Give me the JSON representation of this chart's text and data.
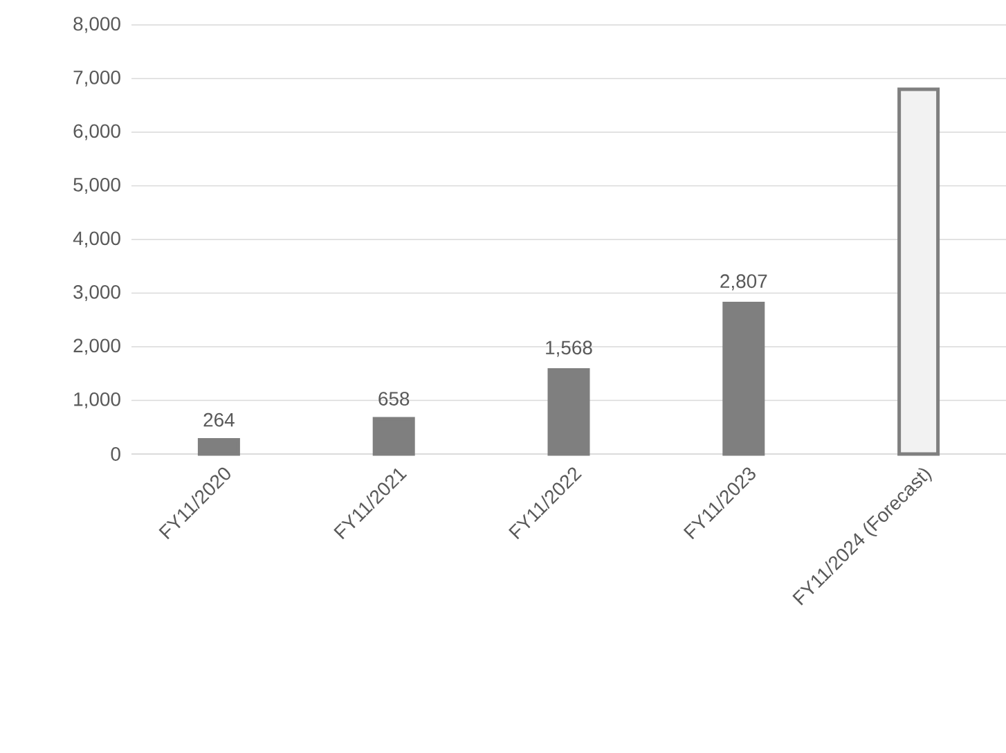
{
  "chart_data": {
    "type": "bar",
    "categories": [
      "FY11/2020",
      "FY11/2021",
      "FY11/2022",
      "FY11/2023",
      "FY11/2024 (Forecast)"
    ],
    "values": [
      264,
      658,
      1568,
      2807,
      6800
    ],
    "colors": [
      "#7f7f7f",
      "#7f7f7f",
      "#7f7f7f",
      "#7f7f7f",
      "#f2f2f2"
    ],
    "value_labels": [
      "264",
      "658",
      "1,568",
      "2,807",
      null
    ],
    "ylim": [
      0,
      8000
    ],
    "yticks": [
      {
        "value": 0,
        "label": "0"
      },
      {
        "value": 1000,
        "label": "1,000"
      },
      {
        "value": 2000,
        "label": "2,000"
      },
      {
        "value": 3000,
        "label": "3,000"
      },
      {
        "value": 4000,
        "label": "4,000"
      },
      {
        "value": 5000,
        "label": "5,000"
      },
      {
        "value": 6000,
        "label": "6,000"
      },
      {
        "value": 7000,
        "label": "7,000"
      },
      {
        "value": 8000,
        "label": "8,000"
      }
    ],
    "grid": "y"
  }
}
